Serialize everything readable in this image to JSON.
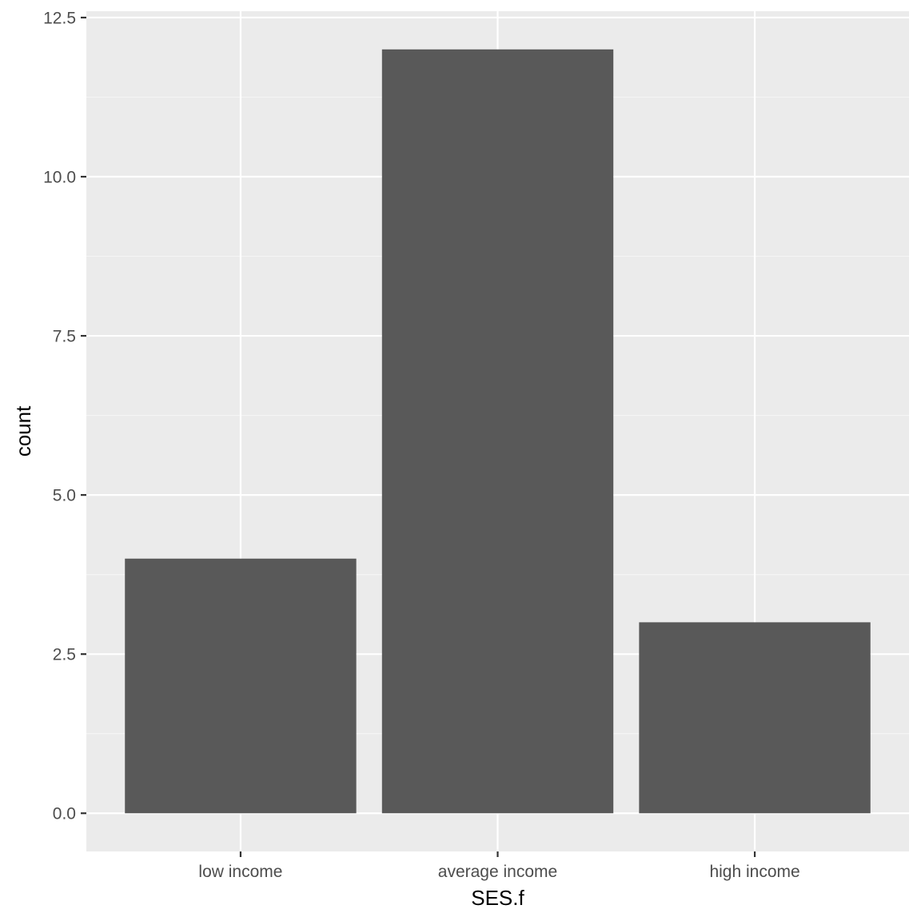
{
  "chart_data": {
    "type": "bar",
    "categories": [
      "low income",
      "average income",
      "high income"
    ],
    "values": [
      4,
      12,
      3
    ],
    "title": "",
    "xlabel": "SES.f",
    "ylabel": "count",
    "ylim": [
      -0.6,
      12.6
    ],
    "y_ticks": [
      0.0,
      2.5,
      5.0,
      7.5,
      10.0,
      12.5
    ],
    "y_tick_labels": [
      "0.0",
      "2.5",
      "5.0",
      "7.5",
      "10.0",
      "12.5"
    ],
    "y_minor_ticks": [
      1.25,
      3.75,
      6.25,
      8.75,
      11.25
    ],
    "grid": true,
    "legend": "none"
  },
  "colors": {
    "panel_background": "#ebebeb",
    "grid_major": "#ffffff",
    "grid_minor": "#f5f5f5",
    "bar_fill": "#595959",
    "tick": "#333333"
  }
}
